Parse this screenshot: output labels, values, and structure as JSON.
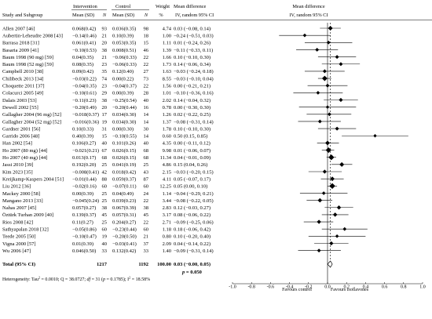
{
  "headers": {
    "study": "Study and Subgroup",
    "intervention": "Intervention",
    "control": "Control",
    "mean_sd": "Mean (SD)",
    "n": "N",
    "weight": "Weight",
    "pct": "%",
    "md": "Mean difference",
    "md_ci": "IV, random 95% CI",
    "plot_title": "Mean difference",
    "plot_subtitle": "IV, random 95% CI"
  },
  "rows": [
    {
      "study": "Allen 2007 [46]",
      "i_mean": "0.068(0.42)",
      "i_n": "93",
      "c_mean": "0.036(0.35)",
      "c_n": "98",
      "weight": "4.74",
      "md": "0.03 (−0.08, 0.14)"
    },
    {
      "study": "Aubertin-Leheudre 2008 [43]",
      "i_mean": "−0.14(0.46)",
      "i_n": "21",
      "c_mean": "0.10(0.39)",
      "c_n": "18",
      "weight": "1.00",
      "md": "−0.24 (−0.51, 0.03)"
    },
    {
      "study": "Barrasa 2018 [31]",
      "i_mean": "0.061(0.41)",
      "i_n": "20",
      "c_mean": "0.053(0.35)",
      "c_n": "15",
      "weight": "1.11",
      "md": "0.01 (−0.24, 0.26)"
    },
    {
      "study": "Basaria 2009 [41]",
      "i_mean": "−0.10(0.53)",
      "i_n": "38",
      "c_mean": "0.008(0.51)",
      "c_n": "46",
      "weight": "1.39",
      "md": "−0.11 (−0.33, 0.11)"
    },
    {
      "study": "Baum 1998 (90 mg) [59]",
      "i_mean": "0.04(0.35)",
      "i_n": "21",
      "c_mean": "−0.06(0.33)",
      "c_n": "22",
      "weight": "1.66",
      "md": "0.10 (−0.10, 0.30)"
    },
    {
      "study": "Baum 1998 (52 mg) [59]",
      "i_mean": "0.08(0.35)",
      "i_n": "23",
      "c_mean": "−0.06(0.33)",
      "c_n": "22",
      "weight": "1.73",
      "md": "0.14 (−0.06, 0.34)"
    },
    {
      "study": "Campbell 2010 [38]",
      "i_mean": "0.09(0.42)",
      "i_n": "35",
      "c_mean": "0.12(0.40)",
      "c_n": "27",
      "weight": "1.63",
      "md": "−0.03 (−0.24, 0.18)"
    },
    {
      "study": "Chilibeck 2013 [34]",
      "i_mean": "−0.03(0.22)",
      "i_n": "74",
      "c_mean": "0.00(0.22)",
      "c_n": "73",
      "weight": "8.55",
      "md": "−0.03 (−0.10, 0.04)"
    },
    {
      "study": "Choquette 2011 [37]",
      "i_mean": "−0.04(0.35)",
      "i_n": "23",
      "c_mean": "−0.04(0.37)",
      "c_n": "22",
      "weight": "1.56",
      "md": "0.00 (−0.21, 0.21)"
    },
    {
      "study": "Colacurci 2005 [49]",
      "i_mean": "−0.10(0.61)",
      "i_n": "29",
      "c_mean": "0.00(0.39)",
      "c_n": "28",
      "weight": "1.01",
      "md": "−0.10 (−0.36, 0.16)"
    },
    {
      "study": "Dalais 2003 [53]",
      "i_mean": "−0.11(0.23)",
      "i_n": "38",
      "c_mean": "−0.25(0.54)",
      "c_n": "40",
      "weight": "2.02",
      "md": "0.14 (−0.04, 0.32)"
    },
    {
      "study": "Dewell  2002 [55]",
      "i_mean": "−0.20(0.49)",
      "i_n": "20",
      "c_mean": "−0.20(0.44)",
      "c_n": "16",
      "weight": "0.78",
      "md": "0.00 (−0.30, 0.30)"
    },
    {
      "study": "Gallagher 2004 (96 mg) [52]",
      "i_mean": "−0.018(0.37)",
      "i_n": "17",
      "c_mean": "0.034(0.30)",
      "c_n": "14",
      "weight": "1.26",
      "md": "0.02 (−0.22, 0.25)"
    },
    {
      "study": "Gallagher 2004 (52 mg) [52]",
      "i_mean": "−0.016(0.36)",
      "i_n": "19",
      "c_mean": "0.034(0.30)",
      "c_n": "14",
      "weight": "1.37",
      "md": "−0.08 (−0.31, 0.14)"
    },
    {
      "study": "Gardner 2001 [56]",
      "i_mean": "0.10(0.33)",
      "i_n": "31",
      "c_mean": "0.00(0.30)",
      "c_n": "30",
      "weight": "1.78",
      "md": "0.10 (−0.10, 0.30)"
    },
    {
      "study": "Garrido 2006 [48]",
      "i_mean": "0.40(0.39)",
      "i_n": "15",
      "c_mean": "−0.10(0.55)",
      "c_n": "14",
      "weight": "0.60",
      "md": "0.50 (0.15, 0.85)"
    },
    {
      "study": "Han 2002 [54]",
      "i_mean": "0.106(0.27)",
      "i_n": "40",
      "c_mean": "0.101(0.26)",
      "c_n": "40",
      "weight": "4.35",
      "md": "0.00 (−0.11, 0.12)"
    },
    {
      "study": "Ho 2007 (80 mg) [44]",
      "i_mean": "−0.021(0.21)",
      "i_n": "67",
      "c_mean": "0.026(0.15)",
      "c_n": "68",
      "weight": "9.98",
      "md": "0.01 (−0.06, 0.07)"
    },
    {
      "study": "Ho 2007 (40 mg) [44]",
      "i_mean": "0.013(0.17)",
      "i_n": "68",
      "c_mean": "0.026(0.15)",
      "c_n": "68",
      "weight": "11.34",
      "md": "0.04 (−0.01, 0.09)"
    },
    {
      "study": "Jassi 2010 [39]",
      "i_mean": "0.192(0.20)",
      "i_n": "25",
      "c_mean": "0.041(0.19)",
      "c_n": "25",
      "weight": "4.86",
      "md": "0.15 (0.04, 0.26)"
    },
    {
      "study": "Kim 2023 [35]",
      "i_mean": "−0.008(0.41)",
      "i_n": "42",
      "c_mean": "0.018(0.42)",
      "c_n": "43",
      "weight": "2.15",
      "md": "−0.03 (−0.20, 0.15)"
    },
    {
      "study": "Kreijkamp-Kaspers 2004 [51]",
      "i_mean": "−0.01(0.44)",
      "i_n": "88",
      "c_mean": "0.059(0.37)",
      "c_n": "87",
      "weight": "4.11",
      "md": "0.05 (−0.07, 0.17)"
    },
    {
      "study": "Liu 2012 [36]",
      "i_mean": "−0.02(0.16)",
      "i_n": "60",
      "c_mean": "−0.07(0.11)",
      "c_n": "60",
      "weight": "12.25",
      "md": "0.05 (0.00, 0.10)"
    },
    {
      "study": "Mackey 2000 [58]",
      "i_mean": "0.00(0.39)",
      "i_n": "25",
      "c_mean": "0.04(0.49)",
      "c_n": "24",
      "weight": "1.14",
      "md": "−0.04 (−0.29, 0.21)"
    },
    {
      "study": "Mangano 2013 [33]",
      "i_mean": "−0.045(0.24)",
      "i_n": "25",
      "c_mean": "0.039(0.23)",
      "c_n": "22",
      "weight": "3.44",
      "md": "−0.08 (−0.22, 0.05)"
    },
    {
      "study": "Nahas 2007 [45]",
      "i_mean": "0.057(0.27)",
      "i_n": "38",
      "c_mean": "0.067(0.39)",
      "c_n": "38",
      "weight": "2.83",
      "md": "0.12 (−0.03, 0.27)"
    },
    {
      "study": "Öztürk Turhan 2009 [40]",
      "i_mean": "0.139(0.37)",
      "i_n": "45",
      "c_mean": "0.057(0.31)",
      "c_n": "45",
      "weight": "3.17",
      "md": "0.08 (−0.06, 0.22)"
    },
    {
      "study": "Rios 2008 [42]",
      "i_mean": "0.11(0.27)",
      "i_n": "25",
      "c_mean": "0.204(0.27)",
      "c_n": "22",
      "weight": "2.71",
      "md": "−0.09 (−0.25, 0.06)"
    },
    {
      "study": "Sathyapalan 2018 [32]",
      "i_mean": "−0.05(0.86)",
      "i_n": "60",
      "c_mean": "−0.23(0.44)",
      "c_n": "60",
      "weight": "1.18",
      "md": "0.18 (−0.06, 0.42)"
    },
    {
      "study": "Teede 2005 [50]",
      "i_mean": "−0.10(0.47)",
      "i_n": "19",
      "c_mean": "−0.20(0.50)",
      "c_n": "21",
      "weight": "0.80",
      "md": "0.10 (−0.20, 0.40)"
    },
    {
      "study": "Vigna 2000 [57]",
      "i_mean": "0.01(0.39)",
      "i_n": "40",
      "c_mean": "−0.03(0.41)",
      "c_n": "37",
      "weight": "2.09",
      "md": "0.04 (−0.14, 0.22)"
    },
    {
      "study": "Wu 2006 [47]",
      "i_mean": "0.046(0.50)",
      "i_n": "33",
      "c_mean": "0.132(0.42)",
      "c_n": "33",
      "weight": "1.40",
      "md": "−0.09 (−0.31, 0.14)"
    }
  ],
  "total": {
    "label": "Total (95% CI)",
    "i_n": "1217",
    "c_n": "1192",
    "weight": "100.00",
    "md": "0.03 (−0.00, 0.05)",
    "p_prefix": "p",
    "p_value": " = 0.050"
  },
  "heterogeneity": {
    "prefix": "Heterogeneity: Tau",
    "sup": "2",
    "body": " = 0.0010; Q = 38.0727; ",
    "df_label": "df",
    "df_body": " = 31 (",
    "p_label": "p",
    "p_body": " = 0.1785); I",
    "i2_body": " = 18.58%"
  },
  "footer": {
    "favours_left": "Favours control",
    "favours_right": "Favours isoflavones"
  },
  "chart_data": {
    "type": "forest",
    "xlim": [
      -1.0,
      1.0
    ],
    "xticks": [
      "-1.0",
      "-0.8",
      "-0.6",
      "-0.4",
      "-0.2",
      "0.0",
      "0.2",
      "0.4",
      "0.6",
      "0.8",
      "1.0"
    ],
    "reference_line": 0.0,
    "points": [
      {
        "md": 0.03,
        "lo": -0.08,
        "hi": 0.14,
        "weight": 4.74
      },
      {
        "md": -0.24,
        "lo": -0.51,
        "hi": 0.03,
        "weight": 1.0
      },
      {
        "md": 0.01,
        "lo": -0.24,
        "hi": 0.26,
        "weight": 1.11
      },
      {
        "md": -0.11,
        "lo": -0.33,
        "hi": 0.11,
        "weight": 1.39
      },
      {
        "md": 0.1,
        "lo": -0.1,
        "hi": 0.3,
        "weight": 1.66
      },
      {
        "md": 0.14,
        "lo": -0.06,
        "hi": 0.34,
        "weight": 1.73
      },
      {
        "md": -0.03,
        "lo": -0.24,
        "hi": 0.18,
        "weight": 1.63
      },
      {
        "md": -0.03,
        "lo": -0.1,
        "hi": 0.04,
        "weight": 8.55
      },
      {
        "md": 0.0,
        "lo": -0.21,
        "hi": 0.21,
        "weight": 1.56
      },
      {
        "md": -0.1,
        "lo": -0.36,
        "hi": 0.16,
        "weight": 1.01
      },
      {
        "md": 0.14,
        "lo": -0.04,
        "hi": 0.32,
        "weight": 2.02
      },
      {
        "md": 0.0,
        "lo": -0.3,
        "hi": 0.3,
        "weight": 0.78
      },
      {
        "md": 0.02,
        "lo": -0.22,
        "hi": 0.25,
        "weight": 1.26
      },
      {
        "md": -0.08,
        "lo": -0.31,
        "hi": 0.14,
        "weight": 1.37
      },
      {
        "md": 0.1,
        "lo": -0.1,
        "hi": 0.3,
        "weight": 1.78
      },
      {
        "md": 0.5,
        "lo": 0.15,
        "hi": 0.85,
        "weight": 0.6
      },
      {
        "md": 0.0,
        "lo": -0.11,
        "hi": 0.12,
        "weight": 4.35
      },
      {
        "md": 0.01,
        "lo": -0.06,
        "hi": 0.07,
        "weight": 9.98
      },
      {
        "md": 0.04,
        "lo": -0.01,
        "hi": 0.09,
        "weight": 11.34
      },
      {
        "md": 0.15,
        "lo": 0.04,
        "hi": 0.26,
        "weight": 4.86
      },
      {
        "md": -0.03,
        "lo": -0.2,
        "hi": 0.15,
        "weight": 2.15
      },
      {
        "md": 0.05,
        "lo": -0.07,
        "hi": 0.17,
        "weight": 4.11
      },
      {
        "md": 0.05,
        "lo": 0.0,
        "hi": 0.1,
        "weight": 12.25
      },
      {
        "md": -0.04,
        "lo": -0.29,
        "hi": 0.21,
        "weight": 1.14
      },
      {
        "md": -0.08,
        "lo": -0.22,
        "hi": 0.05,
        "weight": 3.44
      },
      {
        "md": 0.12,
        "lo": -0.03,
        "hi": 0.27,
        "weight": 2.83
      },
      {
        "md": 0.08,
        "lo": -0.06,
        "hi": 0.22,
        "weight": 3.17
      },
      {
        "md": -0.09,
        "lo": -0.25,
        "hi": 0.06,
        "weight": 2.71
      },
      {
        "md": 0.18,
        "lo": -0.06,
        "hi": 0.42,
        "weight": 1.18
      },
      {
        "md": 0.1,
        "lo": -0.2,
        "hi": 0.4,
        "weight": 0.8
      },
      {
        "md": 0.04,
        "lo": -0.14,
        "hi": 0.22,
        "weight": 2.09
      },
      {
        "md": -0.09,
        "lo": -0.31,
        "hi": 0.14,
        "weight": 1.4
      }
    ],
    "pooled": {
      "md": 0.03,
      "lo": -0.0,
      "hi": 0.05
    }
  }
}
